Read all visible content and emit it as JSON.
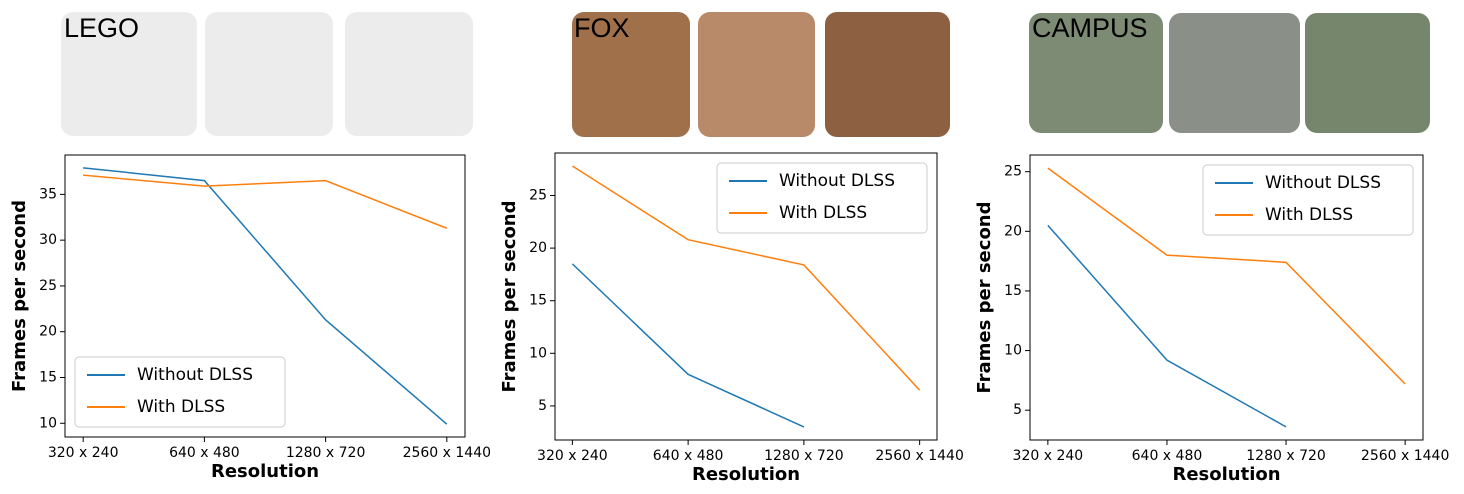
{
  "chart_data": [
    {
      "type": "line",
      "title": "LEGO",
      "xlabel": "Resolution",
      "ylabel": "Frames per second",
      "categories": [
        "320 x 240",
        "640 x 480",
        "1280 x 720",
        "2560 x 1440"
      ],
      "series": [
        {
          "name": "Without DLSS",
          "color": "#1f77b4",
          "values": [
            37.9,
            36.5,
            21.3,
            9.9
          ]
        },
        {
          "name": "With DLSS",
          "color": "#ff7f0e",
          "values": [
            37.1,
            35.9,
            36.5,
            31.3
          ]
        }
      ],
      "ylim": [
        8.5,
        39.3
      ],
      "yticks": [
        10,
        15,
        20,
        25,
        30,
        35
      ],
      "legend": "lower left"
    },
    {
      "type": "line",
      "title": "FOX",
      "xlabel": "Resolution",
      "ylabel": "Frames per second",
      "categories": [
        "320 x 240",
        "640 x 480",
        "1280 x 720",
        "2560 x 1440"
      ],
      "series": [
        {
          "name": "Without DLSS",
          "color": "#1f77b4",
          "values": [
            18.5,
            8.0,
            3.0,
            null
          ]
        },
        {
          "name": "With DLSS",
          "color": "#ff7f0e",
          "values": [
            27.8,
            20.8,
            18.4,
            6.5
          ]
        }
      ],
      "ylim": [
        1.76,
        29.04
      ],
      "yticks": [
        5,
        10,
        15,
        20,
        25
      ],
      "legend": "upper right"
    },
    {
      "type": "line",
      "title": "CAMPUS",
      "xlabel": "Resolution",
      "ylabel": "Frames per second",
      "categories": [
        "320 x 240",
        "640 x 480",
        "1280 x 720",
        "2560 x 1440"
      ],
      "series": [
        {
          "name": "Without DLSS",
          "color": "#1f77b4",
          "values": [
            20.5,
            9.2,
            3.6,
            null
          ]
        },
        {
          "name": "With DLSS",
          "color": "#ff7f0e",
          "values": [
            25.3,
            18.0,
            17.4,
            7.2
          ]
        }
      ],
      "ylim": [
        2.5,
        26.4
      ],
      "yticks": [
        5,
        10,
        15,
        20,
        25
      ],
      "legend": "upper right"
    }
  ]
}
